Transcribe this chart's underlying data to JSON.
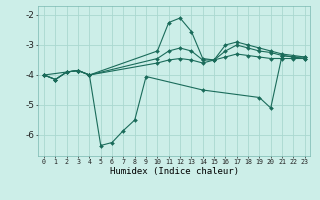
{
  "xlabel": "Humidex (Indice chaleur)",
  "background_color": "#cceee8",
  "line_color": "#1a6b5a",
  "grid_color": "#aad8d0",
  "xlim": [
    -0.5,
    23.5
  ],
  "ylim": [
    -6.7,
    -1.7
  ],
  "yticks": [
    -6,
    -5,
    -4,
    -3,
    -2
  ],
  "xticks": [
    0,
    1,
    2,
    3,
    4,
    5,
    6,
    7,
    8,
    9,
    10,
    11,
    12,
    13,
    14,
    15,
    16,
    17,
    18,
    19,
    20,
    21,
    22,
    23
  ],
  "line1_x": [
    0,
    1,
    2,
    3,
    4,
    10,
    11,
    12,
    13,
    14,
    15,
    16,
    17,
    18,
    19,
    20,
    21,
    22,
    23
  ],
  "line1_y": [
    -4.0,
    -4.15,
    -3.9,
    -3.85,
    -4.0,
    -3.2,
    -2.25,
    -2.1,
    -2.55,
    -3.45,
    -3.5,
    -3.0,
    -2.9,
    -3.0,
    -3.1,
    -3.2,
    -3.3,
    -3.35,
    -3.4
  ],
  "line2_x": [
    0,
    1,
    2,
    3,
    4,
    10,
    11,
    12,
    13,
    14,
    15,
    16,
    17,
    18,
    19,
    20,
    21,
    22,
    23
  ],
  "line2_y": [
    -4.0,
    -4.15,
    -3.9,
    -3.85,
    -4.0,
    -3.45,
    -3.2,
    -3.1,
    -3.2,
    -3.5,
    -3.5,
    -3.2,
    -3.0,
    -3.1,
    -3.2,
    -3.25,
    -3.35,
    -3.4,
    -3.4
  ],
  "line3_x": [
    0,
    1,
    2,
    3,
    4,
    10,
    11,
    12,
    13,
    14,
    15,
    16,
    17,
    18,
    19,
    20,
    21,
    22,
    23
  ],
  "line3_y": [
    -4.0,
    -4.15,
    -3.9,
    -3.85,
    -4.0,
    -3.6,
    -3.5,
    -3.45,
    -3.5,
    -3.6,
    -3.5,
    -3.4,
    -3.3,
    -3.35,
    -3.4,
    -3.45,
    -3.45,
    -3.45,
    -3.45
  ],
  "line4_x": [
    0,
    3,
    4,
    5,
    6,
    7,
    8,
    9,
    14,
    19,
    20,
    21,
    22,
    23
  ],
  "line4_y": [
    -4.0,
    -3.85,
    -4.0,
    -6.35,
    -6.25,
    -5.85,
    -5.5,
    -4.05,
    -4.5,
    -4.75,
    -5.1,
    -3.35,
    -3.4,
    -3.45
  ]
}
